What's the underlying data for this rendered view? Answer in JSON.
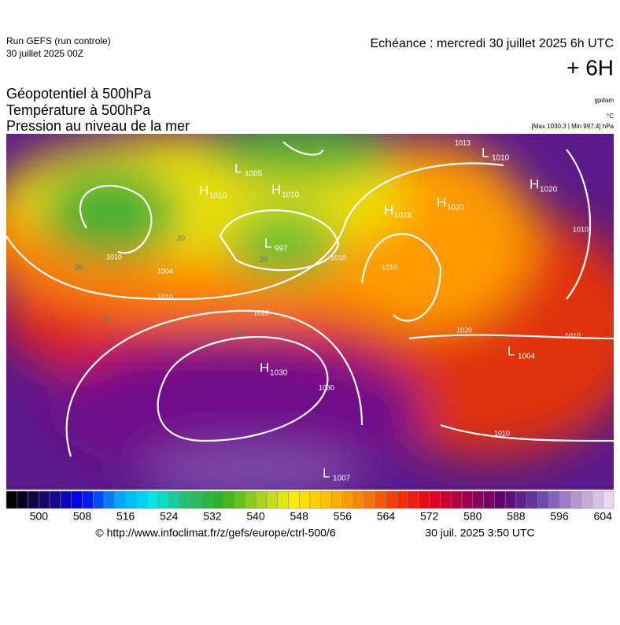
{
  "header": {
    "run": "Run GEFS (run controle)",
    "run_date": "30 juillet 2025 00Z",
    "forecast": "Echéance : mercredi 30 juillet 2025 6h UTC",
    "lead": "+ 6H",
    "fields": [
      "Géopotentiel à 500hPa",
      "Température à 500hPa",
      "Pression au niveau de la mer"
    ],
    "units": [
      "gpdam",
      "°C",
      "[Max 1030.3 | Min 997.4] hPa"
    ]
  },
  "centers": [
    {
      "type": "H",
      "value": "1030"
    },
    {
      "type": "L",
      "value": "1007"
    },
    {
      "type": "H",
      "value": "1018"
    },
    {
      "type": "H",
      "value": "1020"
    },
    {
      "type": "H",
      "value": "1020"
    },
    {
      "type": "L",
      "value": "1004"
    },
    {
      "type": "L",
      "value": "1005"
    },
    {
      "type": "H",
      "value": "1010"
    },
    {
      "type": "H",
      "value": "1010"
    },
    {
      "type": "L",
      "value": "997"
    },
    {
      "type": "L",
      "value": "1010"
    }
  ],
  "contour_labels": [
    "1004",
    "1010",
    "1010",
    "1020",
    "1010",
    "1020",
    "1030",
    "1010",
    "1010",
    "1010",
    "1010",
    "1013",
    "20",
    "20",
    "20",
    "10",
    "10"
  ],
  "colorbar": {
    "ticks": [
      500,
      508,
      516,
      524,
      532,
      540,
      548,
      556,
      564,
      572,
      580,
      588,
      596,
      604
    ],
    "range": [
      494,
      606
    ],
    "step": 2,
    "stops": [
      "#000000",
      "#1a0a6e",
      "#0000ff",
      "#00a0ff",
      "#00e8e8",
      "#20c070",
      "#30b020",
      "#a0d020",
      "#f8f000",
      "#ffc000",
      "#ff8000",
      "#ff3000",
      "#e00020",
      "#a00050",
      "#600070",
      "#6040a0",
      "#b090d0",
      "#e8d8f0"
    ]
  },
  "footer": {
    "source": "© http://www.infoclimat.fr/z/gefs/europe/ctrl-500/6",
    "made": "30 juil. 2025  3:50 UTC"
  }
}
